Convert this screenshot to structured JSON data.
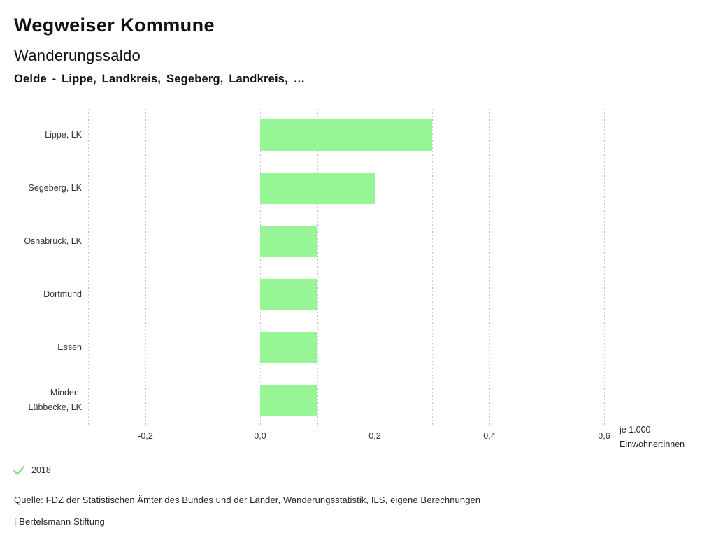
{
  "header": {
    "title": "Wegweiser Kommune",
    "subtitle": "Wanderungssaldo",
    "selection": "Oelde - Lippe, Landkreis, Segeberg, Landkreis, …"
  },
  "chart_data": {
    "type": "bar",
    "orientation": "horizontal",
    "title": "Wanderungssaldo",
    "categories": [
      "Lippe, LK",
      "Segeberg, LK",
      "Osnabrück, LK",
      "Dortmund",
      "Essen",
      "Minden-Lübbecke, LK"
    ],
    "series": [
      {
        "name": "2018",
        "values": [
          0.3,
          0.2,
          0.1,
          0.1,
          0.1,
          0.1
        ]
      }
    ],
    "xlim": [
      -0.3,
      0.6
    ],
    "grid_step": 0.1,
    "grid": true,
    "x_tick_values": [
      -0.2,
      0.0,
      0.2,
      0.4,
      0.6
    ],
    "x_tick_labels": [
      "-0,2",
      "0,0",
      "0,2",
      "0,4",
      "0,6"
    ],
    "unit_label_line1": "je 1.000",
    "unit_label_line2": "Einwohner:innen",
    "bar_color": "#98F596",
    "legend_position": "bottom-left"
  },
  "legend": {
    "items": [
      {
        "icon": "check-icon",
        "label": "2018",
        "color": "#82E28C"
      }
    ]
  },
  "footer": {
    "source": "Quelle: FDZ der Statistischen Ämter des Bundes und der Länder, Wanderungsstatistik, ILS, eigene Berechnungen",
    "attribution": "| Bertelsmann Stiftung"
  },
  "colors": {
    "bar": "#98F596",
    "check": "#82E28C",
    "gridline": "#c6c6c6",
    "title_text": "#111111",
    "label_text": "#333333",
    "footer_text": "#262626"
  }
}
